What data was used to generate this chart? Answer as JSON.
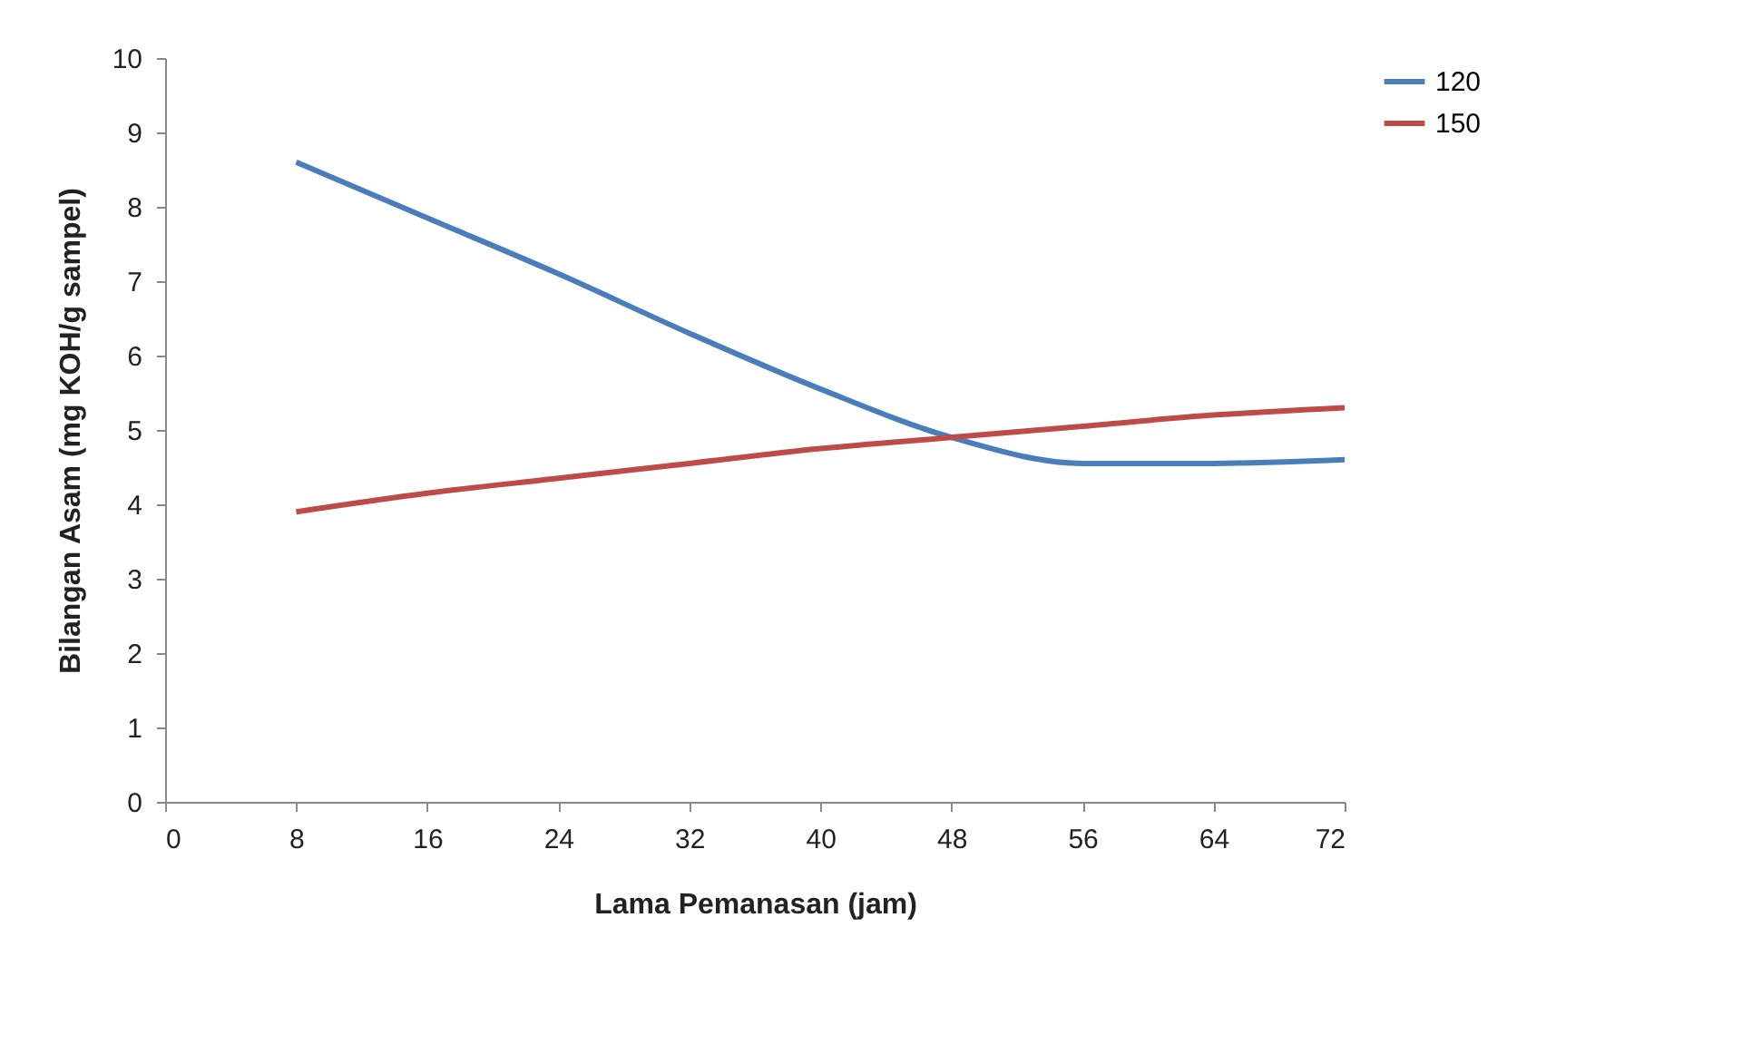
{
  "chart_data": {
    "type": "line",
    "xlabel": "Lama Pemanasan  (jam)",
    "ylabel": "Bilangan Asam (mg KOH/g sampel)",
    "x": [
      8,
      16,
      24,
      32,
      40,
      48,
      56,
      64,
      72
    ],
    "series": [
      {
        "name": "120",
        "color": "#4a7ebb",
        "values": [
          8.6,
          7.85,
          7.1,
          6.3,
          5.55,
          4.9,
          4.55,
          4.55,
          4.6
        ]
      },
      {
        "name": "150",
        "color": "#be4b48",
        "values": [
          3.9,
          4.15,
          4.35,
          4.55,
          4.75,
          4.9,
          5.05,
          5.2,
          5.3
        ]
      }
    ],
    "xlim": [
      0,
      72
    ],
    "xticks": [
      0,
      8,
      16,
      24,
      32,
      40,
      48,
      56,
      64,
      72
    ],
    "ylim": [
      0,
      10
    ],
    "yticks": [
      0,
      1,
      2,
      3,
      4,
      5,
      6,
      7,
      8,
      9,
      10
    ],
    "grid": false,
    "legend": "right",
    "marker": "none",
    "line_style": "solid"
  }
}
